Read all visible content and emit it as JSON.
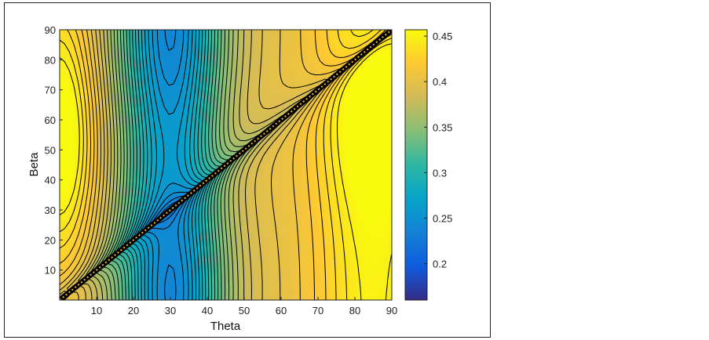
{
  "chart_data": {
    "type": "heatmap",
    "subtype": "filled-contour",
    "title": "",
    "xlabel": "Theta",
    "ylabel": "Beta",
    "xlim": [
      0,
      90
    ],
    "ylim": [
      0,
      90
    ],
    "x_ticks": [
      10,
      20,
      30,
      40,
      50,
      60,
      70,
      80,
      90
    ],
    "y_ticks": [
      10,
      20,
      30,
      40,
      50,
      60,
      70,
      80,
      90
    ],
    "colorbar": {
      "colormap": "parula",
      "range": [
        0.16,
        0.457
      ],
      "ticks": [
        0.2,
        0.25,
        0.3,
        0.35,
        0.4,
        0.45
      ],
      "colors": [
        "#352a87",
        "#0f5cdd",
        "#1481d6",
        "#06a4ca",
        "#2eb7a4",
        "#87bf77",
        "#d1bb59",
        "#fec832",
        "#f9fb0e"
      ]
    },
    "contour_lines": "black",
    "singular_line": {
      "from": [
        0,
        0
      ],
      "to": [
        90,
        90
      ]
    },
    "regions": [
      {
        "label": "minimum valley",
        "theta_range": [
          20,
          40
        ],
        "value": 0.25
      },
      {
        "label": "maximum near origin",
        "theta": 3,
        "beta": 15,
        "value": 0.45
      },
      {
        "label": "maximum lower right",
        "theta": 85,
        "beta": 60,
        "value": 0.43
      }
    ]
  },
  "axes": {
    "x_tick_labels": [
      "10",
      "20",
      "30",
      "40",
      "50",
      "60",
      "70",
      "80",
      "90"
    ],
    "y_tick_labels": [
      "10",
      "20",
      "30",
      "40",
      "50",
      "60",
      "70",
      "80",
      "90"
    ]
  },
  "colorbar_labels": [
    "0.2",
    "0.25",
    "0.3",
    "0.35",
    "0.4",
    "0.45"
  ]
}
